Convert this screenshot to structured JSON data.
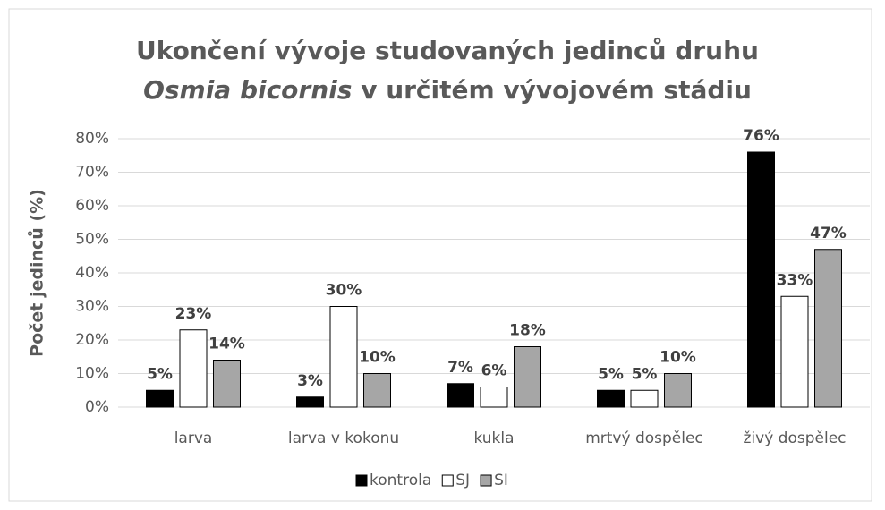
{
  "chart_data": {
    "type": "bar",
    "title": [
      "Ukončení vývoje studovaných jedinců druhu",
      "Osmia bicornis",
      "v určitém vývojovém stádiu"
    ],
    "ylabel": "Počet jedinců (%)",
    "categories": [
      "larva",
      "larva v kokonu",
      "kukla",
      "mrtvý dospělec",
      "živý dospělec"
    ],
    "series": [
      {
        "name": "kontrola",
        "color": "#000000",
        "values": [
          5,
          3,
          7,
          5,
          76
        ],
        "value_labels": [
          "5%",
          "3%",
          "7%",
          "5%",
          "76%"
        ]
      },
      {
        "name": "SJ",
        "color": "#ffffff",
        "values": [
          23,
          30,
          6,
          5,
          33
        ],
        "value_labels": [
          "23%",
          "30%",
          "6%",
          "5%",
          "33%"
        ]
      },
      {
        "name": "SI",
        "color": "#a6a6a6",
        "values": [
          14,
          10,
          18,
          10,
          47
        ],
        "value_labels": [
          "14%",
          "10%",
          "18%",
          "10%",
          "47%"
        ]
      }
    ],
    "ylim": [
      0,
      80
    ],
    "yticks": [
      {
        "value": 0,
        "label": "0%"
      },
      {
        "value": 10,
        "label": "10%"
      },
      {
        "value": 20,
        "label": "20%"
      },
      {
        "value": 30,
        "label": "30%"
      },
      {
        "value": 40,
        "label": "40%"
      },
      {
        "value": 50,
        "label": "50%"
      },
      {
        "value": 60,
        "label": "60%"
      },
      {
        "value": 70,
        "label": "70%"
      },
      {
        "value": 80,
        "label": "80%"
      }
    ],
    "grid": true,
    "legend": "bottom"
  }
}
